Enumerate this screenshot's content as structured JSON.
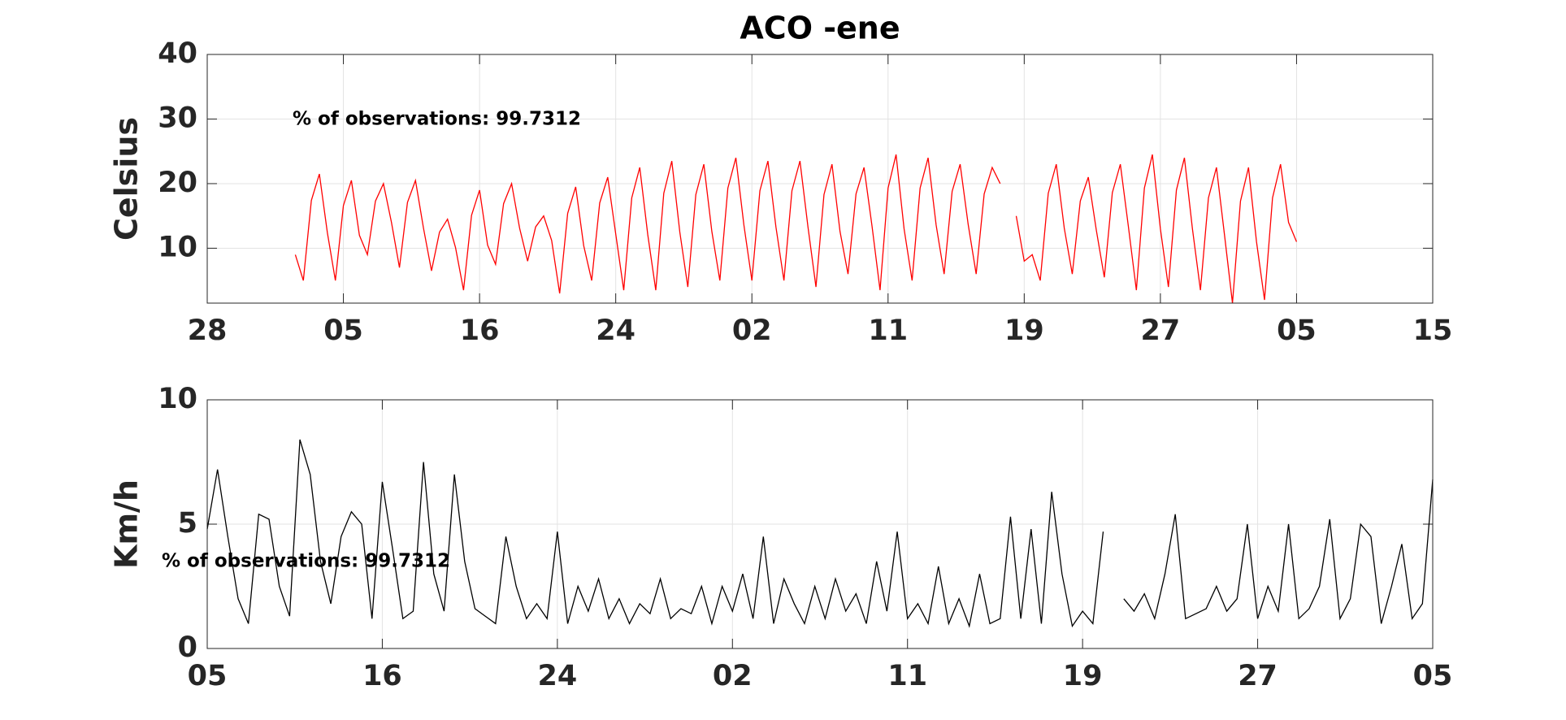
{
  "chart_data": [
    {
      "type": "line",
      "title": "ACO -ene",
      "ylabel": "Celsius",
      "annotation": "% of observations: 99.7312",
      "xlim": [
        0,
        38.25
      ],
      "xticks": [
        {
          "value": 0,
          "label": "28"
        },
        {
          "value": 4.25,
          "label": "05"
        },
        {
          "value": 8.5,
          "label": "16"
        },
        {
          "value": 12.75,
          "label": "24"
        },
        {
          "value": 17,
          "label": "02"
        },
        {
          "value": 21.25,
          "label": "11"
        },
        {
          "value": 25.5,
          "label": "19"
        },
        {
          "value": 29.75,
          "label": "27"
        },
        {
          "value": 34,
          "label": "05"
        },
        {
          "value": 38.25,
          "label": "15"
        }
      ],
      "ylim": [
        1.5,
        40
      ],
      "yticks": [
        10,
        20,
        30,
        40
      ],
      "grid": true,
      "x": [
        2.75,
        3,
        3.25,
        3.5,
        3.75,
        4,
        4.25,
        4.5,
        4.75,
        5,
        5.25,
        5.5,
        5.75,
        6,
        6.25,
        6.5,
        6.75,
        7,
        7.25,
        7.5,
        7.75,
        8,
        8.25,
        8.5,
        8.75,
        9,
        9.25,
        9.5,
        9.75,
        10,
        10.25,
        10.5,
        10.75,
        11,
        11.25,
        11.5,
        11.75,
        12,
        12.25,
        12.5,
        12.75,
        13,
        13.25,
        13.5,
        13.75,
        14,
        14.25,
        14.5,
        14.75,
        15,
        15.25,
        15.5,
        15.75,
        16,
        16.25,
        16.5,
        16.75,
        17,
        17.25,
        17.5,
        17.75,
        18,
        18.25,
        18.5,
        18.75,
        19,
        19.25,
        19.5,
        19.75,
        20,
        20.25,
        20.5,
        20.75,
        21,
        21.25,
        21.5,
        21.75,
        22,
        22.25,
        22.5,
        22.75,
        23,
        23.25,
        23.5,
        23.75,
        24,
        24.25,
        24.5,
        24.75,
        25,
        25.25,
        25.5,
        25.75,
        26,
        26.25,
        26.5,
        26.75,
        27,
        27.25,
        27.5,
        27.75,
        28,
        28.25,
        28.5,
        28.75,
        29,
        29.25,
        29.5,
        29.75,
        30,
        30.25,
        30.5,
        30.75,
        31,
        31.25,
        31.5,
        31.75,
        32,
        32.25,
        32.5,
        32.75,
        33,
        33.25,
        33.5,
        33.75,
        34
      ],
      "series": [
        {
          "color": "#ff0000",
          "values": [
            9,
            5,
            17.4,
            21.5,
            12.4,
            5,
            16.6,
            20.5,
            12,
            9,
            17.3,
            20,
            14,
            7,
            17.1,
            20.5,
            13.1,
            6.5,
            12.5,
            14.5,
            10.1,
            3.5,
            15.1,
            19,
            10.5,
            7.5,
            16.9,
            20,
            13.1,
            8,
            13.3,
            15,
            11.2,
            3,
            15.4,
            19.5,
            10.4,
            5,
            17,
            21,
            12.2,
            3.5,
            17.8,
            22.5,
            12.1,
            3.5,
            18.5,
            23.5,
            12.5,
            4,
            18.3,
            23,
            12.6,
            5,
            19.3,
            24,
            13.6,
            5,
            18.9,
            23.5,
            13.3,
            5,
            18.9,
            23.5,
            13.3,
            4,
            18.3,
            23,
            12.6,
            6,
            18.4,
            22.5,
            13.4,
            3.5,
            19.3,
            24.5,
            13,
            5,
            19.3,
            24,
            13.6,
            6,
            18.8,
            23,
            13.7,
            6,
            18.4,
            22.5,
            20,
            null,
            15,
            8,
            9,
            5,
            18.5,
            23,
            13.1,
            6,
            17.3,
            21,
            12.8,
            5.5,
            18.6,
            23,
            13.4,
            3.5,
            19.3,
            24.5,
            13,
            4,
            19,
            24,
            13,
            3.5,
            17.8,
            22.5,
            12.1,
            1.5,
            17.3,
            22.5,
            11,
            2,
            17.8,
            23,
            14,
            11
          ]
        }
      ]
    },
    {
      "type": "line",
      "ylabel": "Km/h",
      "annotation": "% of observations: 99.7312",
      "xlim": [
        0,
        29.75
      ],
      "xticks": [
        {
          "value": 0,
          "label": "05"
        },
        {
          "value": 4.25,
          "label": "16"
        },
        {
          "value": 8.5,
          "label": "24"
        },
        {
          "value": 12.75,
          "label": "02"
        },
        {
          "value": 17,
          "label": "11"
        },
        {
          "value": 21.25,
          "label": "19"
        },
        {
          "value": 25.5,
          "label": "27"
        },
        {
          "value": 29.75,
          "label": "05"
        }
      ],
      "ylim": [
        0,
        10
      ],
      "yticks": [
        0,
        5,
        10
      ],
      "grid": true,
      "x": [
        0,
        0.25,
        0.5,
        0.75,
        1,
        1.25,
        1.5,
        1.75,
        2,
        2.25,
        2.5,
        2.75,
        3,
        3.25,
        3.5,
        3.75,
        4,
        4.25,
        4.5,
        4.75,
        5,
        5.25,
        5.5,
        5.75,
        6,
        6.25,
        6.5,
        6.75,
        7,
        7.25,
        7.5,
        7.75,
        8,
        8.25,
        8.5,
        8.75,
        9,
        9.25,
        9.5,
        9.75,
        10,
        10.25,
        10.5,
        10.75,
        11,
        11.25,
        11.5,
        11.75,
        12,
        12.25,
        12.5,
        12.75,
        13,
        13.25,
        13.5,
        13.75,
        14,
        14.25,
        14.5,
        14.75,
        15,
        15.25,
        15.5,
        15.75,
        16,
        16.25,
        16.5,
        16.75,
        17,
        17.25,
        17.5,
        17.75,
        18,
        18.25,
        18.5,
        18.75,
        19,
        19.25,
        19.5,
        19.75,
        20,
        20.25,
        20.5,
        20.75,
        21,
        21.25,
        21.5,
        21.75,
        22,
        22.25,
        22.5,
        22.75,
        23,
        23.25,
        23.5,
        23.75,
        24,
        24.25,
        24.5,
        24.75,
        25,
        25.25,
        25.5,
        25.75,
        26,
        26.25,
        26.5,
        26.75,
        27,
        27.25,
        27.5,
        27.75,
        28,
        28.25,
        28.5,
        28.75,
        29,
        29.25,
        29.5,
        29.75
      ],
      "series": [
        {
          "color": "#000000",
          "values": [
            4.8,
            7.2,
            4.5,
            2,
            1,
            5.4,
            5.2,
            2.5,
            1.3,
            8.4,
            7,
            3.5,
            1.8,
            4.5,
            5.5,
            5,
            1.2,
            6.7,
            4,
            1.2,
            1.5,
            7.5,
            3,
            1.5,
            7,
            3.5,
            1.6,
            1.3,
            1,
            4.5,
            2.5,
            1.2,
            1.8,
            1.2,
            4.7,
            1,
            2.5,
            1.5,
            2.8,
            1.2,
            2,
            1,
            1.8,
            1.4,
            2.8,
            1.2,
            1.6,
            1.4,
            2.5,
            1,
            2.5,
            1.5,
            3,
            1.2,
            4.5,
            1,
            2.8,
            1.8,
            1,
            2.5,
            1.2,
            2.8,
            1.5,
            2.2,
            1,
            3.5,
            1.5,
            4.7,
            1.2,
            1.8,
            1,
            3.3,
            1,
            2,
            0.9,
            3,
            1,
            1.2,
            5.3,
            1.2,
            4.8,
            1,
            6.3,
            3,
            0.9,
            1.5,
            1,
            4.7,
            null,
            2,
            1.5,
            2.2,
            1.2,
            3,
            5.4,
            1.2,
            1.4,
            1.6,
            2.5,
            1.5,
            2,
            5,
            1.2,
            2.5,
            1.5,
            5,
            1.2,
            1.6,
            2.5,
            5.2,
            1.2,
            2,
            5,
            4.5,
            1,
            2.5,
            4.2,
            1.2,
            1.8,
            6.8
          ]
        }
      ]
    }
  ]
}
